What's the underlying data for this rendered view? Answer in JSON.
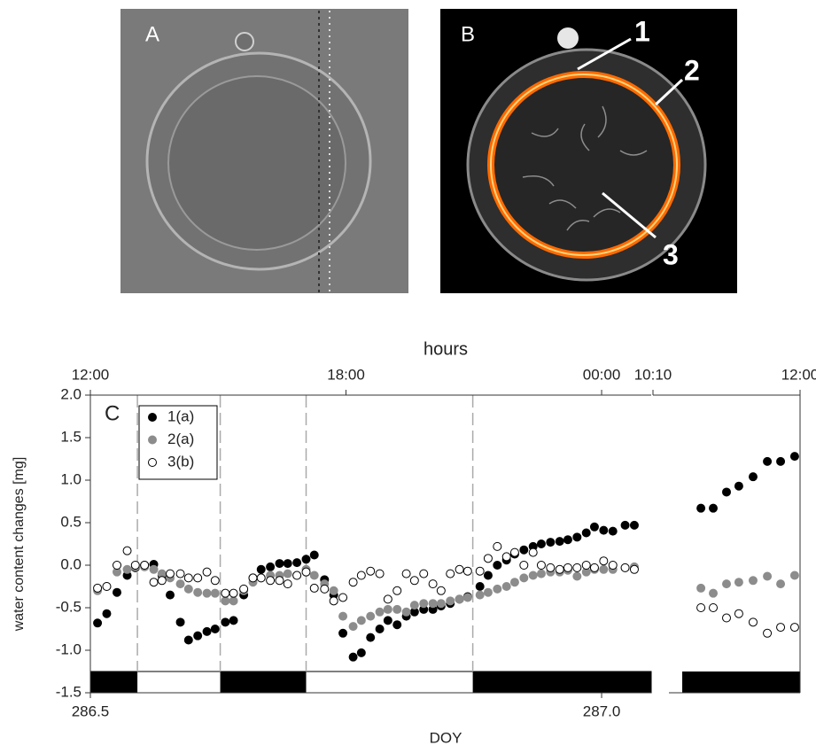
{
  "images": [
    {
      "panel": "A"
    },
    {
      "panel": "B",
      "markers": [
        "1",
        "2",
        "3"
      ]
    }
  ],
  "chart_data": [
    {
      "type": "scatter",
      "panel_label": "C",
      "x_label": "DOY",
      "x2_label": "hours",
      "y_label": "water content changes [mg]",
      "legend": "upper left",
      "period_lines": true,
      "xlim": [
        286.5,
        287.0485
      ],
      "ylim": [
        -1.5,
        2
      ],
      "xticks": [
        286.5,
        {
          "value": 287,
          "label": "287.0"
        }
      ],
      "x2ticks": [
        {
          "value": 286.5,
          "label": "12:00"
        },
        {
          "value": 286.75,
          "label": "18:00"
        },
        {
          "value": 287,
          "label": "00:00"
        }
      ],
      "yticks": [
        {
          "value": 2,
          "label": "2.0"
        },
        1.5,
        {
          "value": 1,
          "label": "1.0"
        },
        0.5,
        {
          "value": 0,
          "label": "0.0"
        },
        -0.5,
        {
          "value": -1,
          "label": "-1.0"
        },
        -1.5
      ],
      "dark_periods": [
        [
          286.5,
          286.546
        ],
        [
          286.627,
          286.711
        ],
        [
          286.874,
          287.0485
        ]
      ],
      "x": [
        286.507,
        286.516,
        286.526,
        286.536,
        286.544,
        286.553,
        286.562,
        286.57,
        286.578,
        286.588,
        286.596,
        286.605,
        286.614,
        286.622,
        286.632,
        286.64,
        286.65,
        286.659,
        286.667,
        286.676,
        286.685,
        286.693,
        286.702,
        286.711,
        286.719,
        286.729,
        286.738,
        286.747,
        286.757,
        286.765,
        286.774,
        286.783,
        286.791,
        286.8,
        286.809,
        286.817,
        286.826,
        286.835,
        286.843,
        286.852,
        286.861,
        286.869,
        286.881,
        286.889,
        286.898,
        286.907,
        286.915,
        286.924,
        286.933,
        286.941,
        286.95,
        286.959,
        286.967,
        286.976,
        286.985,
        286.993,
        287.002,
        287.011,
        287.023,
        287.032
      ],
      "series": [
        {
          "name": "1(a)",
          "color": "#000000",
          "fill": "#000000",
          "values": [
            -0.68,
            -0.57,
            -0.32,
            -0.12,
            -0.03,
            0.0,
            0.01,
            -0.12,
            -0.35,
            -0.67,
            -0.88,
            -0.83,
            -0.78,
            -0.75,
            -0.67,
            -0.65,
            -0.35,
            -0.15,
            -0.05,
            -0.02,
            0.02,
            0.02,
            0.03,
            0.07,
            0.12,
            -0.17,
            -0.35,
            -0.8,
            -1.08,
            -1.03,
            -0.85,
            -0.75,
            -0.65,
            -0.7,
            -0.6,
            -0.55,
            -0.52,
            -0.52,
            -0.48,
            -0.45,
            -0.4,
            -0.37,
            -0.25,
            -0.12,
            0.0,
            0.06,
            0.13,
            0.18,
            0.22,
            0.25,
            0.27,
            0.28,
            0.3,
            0.33,
            0.38,
            0.45,
            0.41,
            0.4,
            0.47,
            0.47
          ]
        },
        {
          "name": "2(a)",
          "color": "#8c8c8c",
          "fill": "#8c8c8c",
          "values": [
            -0.3,
            -0.25,
            -0.08,
            -0.05,
            -0.02,
            -0.02,
            -0.05,
            -0.1,
            -0.15,
            -0.22,
            -0.28,
            -0.32,
            -0.33,
            -0.33,
            -0.42,
            -0.42,
            -0.3,
            -0.2,
            -0.15,
            -0.12,
            -0.12,
            -0.1,
            -0.12,
            -0.05,
            -0.12,
            -0.22,
            -0.3,
            -0.6,
            -0.72,
            -0.65,
            -0.6,
            -0.55,
            -0.52,
            -0.52,
            -0.55,
            -0.47,
            -0.45,
            -0.45,
            -0.45,
            -0.42,
            -0.4,
            -0.38,
            -0.35,
            -0.32,
            -0.28,
            -0.25,
            -0.2,
            -0.15,
            -0.12,
            -0.1,
            -0.08,
            -0.08,
            -0.06,
            -0.13,
            -0.08,
            -0.05,
            -0.05,
            -0.05,
            -0.03,
            -0.02
          ]
        },
        {
          "name": "3(b)",
          "color": "#000000",
          "fill": "#ffffff",
          "values": [
            -0.27,
            -0.25,
            0.0,
            0.17,
            0.0,
            0.0,
            -0.2,
            -0.18,
            -0.1,
            -0.1,
            -0.15,
            -0.15,
            -0.08,
            -0.18,
            -0.33,
            -0.33,
            -0.28,
            -0.15,
            -0.15,
            -0.18,
            -0.18,
            -0.22,
            -0.12,
            -0.08,
            -0.27,
            -0.28,
            -0.42,
            -0.38,
            -0.2,
            -0.12,
            -0.07,
            -0.1,
            -0.4,
            -0.3,
            -0.1,
            -0.18,
            -0.1,
            -0.22,
            -0.3,
            -0.1,
            -0.05,
            -0.07,
            -0.07,
            0.08,
            0.22,
            0.1,
            0.15,
            0.0,
            0.15,
            0.0,
            -0.03,
            -0.05,
            -0.03,
            -0.03,
            0.0,
            -0.03,
            0.05,
            0.0,
            -0.03,
            -0.05
          ]
        }
      ]
    },
    {
      "type": "scatter",
      "xlim": [
        287.4236,
        287.5
      ],
      "ylim": [
        -1.5,
        2
      ],
      "x2ticks": [
        {
          "value": 287.4236,
          "label": "10:10"
        },
        {
          "value": 287.5,
          "label": "12:00"
        }
      ],
      "dark_periods": [
        [
          287.4388,
          287.5
        ]
      ],
      "x": [
        287.4485,
        287.4549,
        287.4618,
        287.4682,
        287.4756,
        287.483,
        287.4899,
        287.4972
      ],
      "series": [
        {
          "color": "#000000",
          "fill": "#000000",
          "values": [
            0.67,
            0.67,
            0.86,
            0.93,
            1.04,
            1.22,
            1.22,
            1.28
          ]
        },
        {
          "color": "#8c8c8c",
          "fill": "#8c8c8c",
          "values": [
            -0.27,
            -0.33,
            -0.22,
            -0.2,
            -0.18,
            -0.13,
            -0.22,
            -0.12
          ]
        },
        {
          "color": "#000000",
          "fill": "#ffffff",
          "values": [
            -0.5,
            -0.5,
            -0.62,
            -0.57,
            -0.67,
            -0.8,
            -0.73,
            -0.73
          ]
        }
      ]
    }
  ]
}
